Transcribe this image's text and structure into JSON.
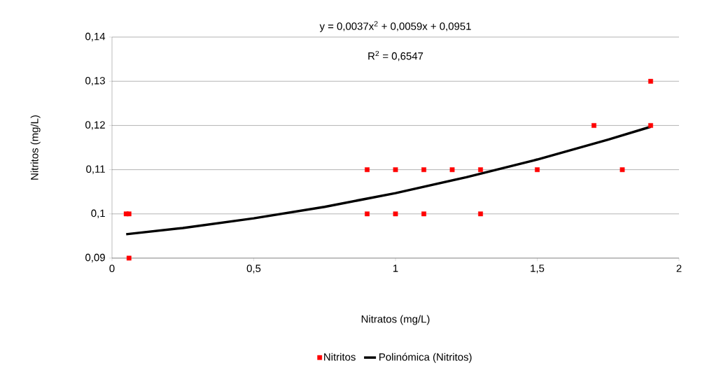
{
  "chart_data": {
    "type": "scatter",
    "xlabel": "Nitratos (mg/L)",
    "ylabel": "Nitritos (mg/L)",
    "annotations": [
      "y = 0,0037x$^{2}$ + 0,0059x + 0,0951",
      "R$^{2}$ = 0,6547"
    ],
    "xlim": [
      0,
      2
    ],
    "xticks": [
      0,
      {
        "value": 0.5,
        "label": "0,5"
      },
      1,
      {
        "value": 1.5,
        "label": "1,5"
      },
      2
    ],
    "ylim": [
      0.09,
      0.14
    ],
    "yticks": [
      {
        "value": 0.09,
        "label": "0,09"
      },
      {
        "value": 0.1,
        "label": "0,1"
      },
      {
        "value": 0.11,
        "label": "0,11"
      },
      {
        "value": 0.12,
        "label": "0,12"
      },
      {
        "value": 0.13,
        "label": "0,13"
      },
      {
        "value": 0.14,
        "label": "0,14"
      }
    ],
    "grid": "y",
    "legend": "bottom",
    "series": [
      {
        "name": "Nitritos",
        "marker": "square",
        "color": "#ff0000",
        "x": [
          0.05,
          0.06,
          0.06,
          0.9,
          0.9,
          1.0,
          1.0,
          1.1,
          1.1,
          1.2,
          1.3,
          1.3,
          1.5,
          1.7,
          1.8,
          1.9,
          1.9
        ],
        "values": [
          0.1,
          0.1,
          0.09,
          0.11,
          0.1,
          0.11,
          0.1,
          0.11,
          0.1,
          0.11,
          0.11,
          0.1,
          0.11,
          0.12,
          0.11,
          0.13,
          0.12
        ]
      },
      {
        "name": "Polinómica (Nitritos)",
        "type": "line",
        "marker": "none",
        "line_style": "solid",
        "color": "#000000",
        "x": [
          0.05,
          0.25,
          0.5,
          0.75,
          1.0,
          1.25,
          1.5,
          1.75,
          1.9
        ],
        "values": [
          0.0954,
          0.0968,
          0.099,
          0.1016,
          0.1047,
          0.1083,
          0.1123,
          0.1168,
          0.1197
        ]
      }
    ]
  }
}
